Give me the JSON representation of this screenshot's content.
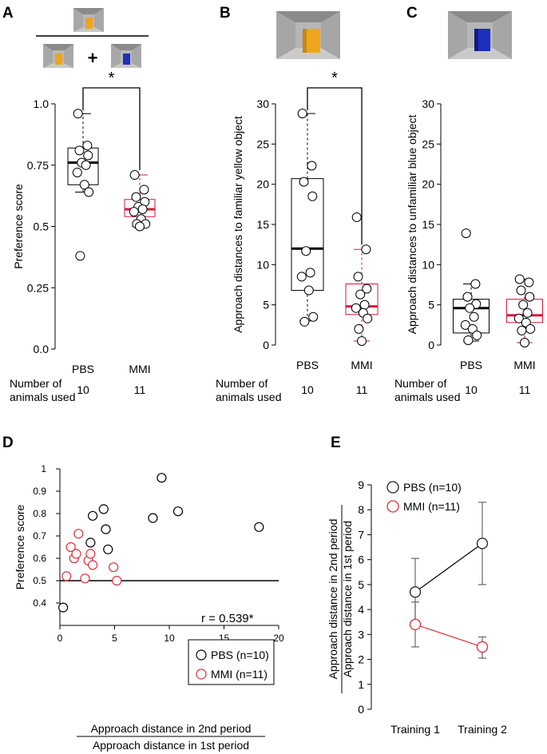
{
  "colors": {
    "pbs": "#000000",
    "mmi": "#d6173f",
    "mmi_point": "#e0303a",
    "yellow_object": "#f0a51d",
    "blue_object": "#1d2fbd",
    "arena_floor": "#c8c8c8",
    "arena_wall": "#8a8a8a"
  },
  "panel_letters": [
    "A",
    "B",
    "C",
    "D",
    "E"
  ],
  "animals_label": {
    "line1": "Number of",
    "line2": "animals used"
  },
  "group_labels": [
    "PBS",
    "MMI"
  ],
  "counts": [
    "10",
    "11"
  ],
  "significance": "*",
  "plus_sign": "+",
  "chart_data": [
    {
      "panel": "A",
      "type": "box",
      "ylabel": "Preference score",
      "ylim": [
        0,
        1
      ],
      "yticks": [
        "0.0",
        "0.25",
        "0.5",
        "0.75",
        "1.0"
      ],
      "categories": [
        "PBS",
        "MMI"
      ],
      "n": [
        "10",
        "11"
      ],
      "groups": [
        {
          "name": "PBS",
          "whisker_low": 0.64,
          "q1": 0.67,
          "median": 0.76,
          "q3": 0.82,
          "whisker_high": 0.96,
          "points": [
            0.96,
            0.83,
            0.81,
            0.79,
            0.76,
            0.75,
            0.72,
            0.67,
            0.64,
            0.38
          ]
        },
        {
          "name": "MMI",
          "whisker_low": 0.5,
          "q1": 0.54,
          "median": 0.57,
          "q3": 0.61,
          "whisker_high": 0.71,
          "points": [
            0.71,
            0.65,
            0.62,
            0.6,
            0.58,
            0.57,
            0.56,
            0.53,
            0.51,
            0.51,
            0.5
          ]
        }
      ],
      "significant": true
    },
    {
      "panel": "B",
      "type": "box",
      "ylabel": "Approach distances to familiar yellow object",
      "ylim": [
        0,
        30
      ],
      "yticks": [
        "0",
        "5",
        "10",
        "15",
        "20",
        "25",
        "30"
      ],
      "categories": [
        "PBS",
        "MMI"
      ],
      "n": [
        "10",
        "11"
      ],
      "groups": [
        {
          "name": "PBS",
          "whisker_low": 3,
          "q1": 6.8,
          "median": 12,
          "q3": 20.7,
          "whisker_high": 28.8,
          "points": [
            28.8,
            22.3,
            20.3,
            18.5,
            11.7,
            9.0,
            8.5,
            6.8,
            3.5,
            2.9
          ]
        },
        {
          "name": "MMI",
          "whisker_low": 0.5,
          "q1": 3.8,
          "median": 4.8,
          "q3": 7.6,
          "whisker_high": 11.9,
          "points": [
            15.9,
            11.9,
            8.5,
            7.0,
            6.3,
            5.0,
            4.6,
            4.0,
            3.3,
            2.0,
            0.5
          ]
        }
      ],
      "significant": true
    },
    {
      "panel": "C",
      "type": "box",
      "ylabel": "Approach distances to unfamiliar blue object",
      "ylim": [
        0,
        30
      ],
      "yticks": [
        "0",
        "5",
        "10",
        "15",
        "20",
        "25",
        "30"
      ],
      "categories": [
        "PBS",
        "MMI"
      ],
      "n": [
        "10",
        "11"
      ],
      "groups": [
        {
          "name": "PBS",
          "whisker_low": 0.5,
          "q1": 1.5,
          "median": 4.6,
          "q3": 5.7,
          "whisker_high": 7.6,
          "points": [
            13.9,
            7.6,
            6.0,
            5.1,
            4.6,
            3.5,
            2.5,
            2.0,
            1.2,
            0.6
          ]
        },
        {
          "name": "MMI",
          "whisker_low": 0.3,
          "q1": 2.8,
          "median": 3.7,
          "q3": 5.7,
          "whisker_high": 8.2,
          "points": [
            8.2,
            7.8,
            6.8,
            6.0,
            5.0,
            4.0,
            3.3,
            2.8,
            2.0,
            1.8,
            0.3
          ]
        }
      ],
      "significant": false
    },
    {
      "panel": "D",
      "type": "scatter",
      "ylabel": "Preference score",
      "xlabel_numerator": "Approach distance in 2nd period",
      "xlabel_denominator": "Approach distance in 1st period",
      "xlim": [
        0,
        20
      ],
      "ylim": [
        0.3,
        1.0
      ],
      "xticks": [
        "0",
        "5",
        "10",
        "15",
        "20"
      ],
      "yticks": [
        "0.4",
        "0.5",
        "0.6",
        "0.7",
        "0.8",
        "0.9",
        "1"
      ],
      "reference_line_y": 0.5,
      "annotation": "r = 0.539*",
      "series": [
        {
          "name": "PBS (n=10)",
          "color_key": "pbs",
          "points": [
            [
              0.3,
              0.38
            ],
            [
              2.8,
              0.67
            ],
            [
              3.0,
              0.79
            ],
            [
              4.0,
              0.82
            ],
            [
              4.2,
              0.73
            ],
            [
              4.4,
              0.64
            ],
            [
              8.5,
              0.78
            ],
            [
              9.3,
              0.96
            ],
            [
              10.8,
              0.81
            ],
            [
              18.2,
              0.74
            ]
          ]
        },
        {
          "name": "MMI (n=11)",
          "color_key": "mmi_point",
          "points": [
            [
              0.6,
              0.52
            ],
            [
              1.0,
              0.65
            ],
            [
              1.3,
              0.6
            ],
            [
              1.5,
              0.62
            ],
            [
              1.7,
              0.71
            ],
            [
              2.3,
              0.51
            ],
            [
              2.6,
              0.59
            ],
            [
              2.8,
              0.62
            ],
            [
              3.0,
              0.57
            ],
            [
              4.9,
              0.56
            ],
            [
              5.2,
              0.5
            ]
          ]
        }
      ]
    },
    {
      "panel": "E",
      "type": "line",
      "ylabel_numerator": "Approach distance in 2nd period",
      "ylabel_denominator": "Approach distance in 1st period",
      "categories": [
        "Training 1",
        "Training 2"
      ],
      "ylim": [
        0,
        9
      ],
      "yticks": [
        "0",
        "1",
        "2",
        "3",
        "4",
        "5",
        "6",
        "7",
        "8",
        "9"
      ],
      "series": [
        {
          "name": "PBS (n=10)",
          "color_key": "pbs",
          "values": [
            4.7,
            6.65
          ],
          "err_low": [
            3.4,
            5.0
          ],
          "err_high": [
            6.05,
            8.3
          ]
        },
        {
          "name": "MMI (n=11)",
          "color_key": "mmi_point",
          "values": [
            3.4,
            2.5
          ],
          "err_low": [
            2.5,
            2.05
          ],
          "err_high": [
            4.3,
            2.9
          ]
        }
      ]
    }
  ]
}
